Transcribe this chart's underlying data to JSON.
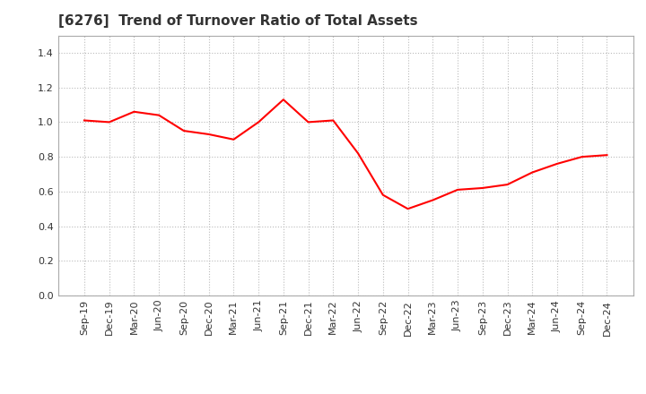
{
  "title": "[6276]  Trend of Turnover Ratio of Total Assets",
  "line_color": "#FF0000",
  "background_color": "#FFFFFF",
  "grid_color": "#BBBBBB",
  "labels": [
    "Sep-19",
    "Dec-19",
    "Mar-20",
    "Jun-20",
    "Sep-20",
    "Dec-20",
    "Mar-21",
    "Jun-21",
    "Sep-21",
    "Dec-21",
    "Mar-22",
    "Jun-22",
    "Sep-22",
    "Dec-22",
    "Mar-23",
    "Jun-23",
    "Sep-23",
    "Dec-23",
    "Mar-24",
    "Jun-24",
    "Sep-24",
    "Dec-24"
  ],
  "values": [
    1.01,
    1.0,
    1.06,
    1.04,
    0.95,
    0.93,
    0.9,
    1.0,
    1.13,
    1.0,
    1.01,
    0.82,
    0.58,
    0.5,
    0.55,
    0.61,
    0.62,
    0.64,
    0.71,
    0.76,
    0.8,
    0.81
  ],
  "ylim": [
    0.0,
    1.5
  ],
  "yticks": [
    0.0,
    0.2,
    0.4,
    0.6,
    0.8,
    1.0,
    1.2,
    1.4
  ],
  "title_fontsize": 11,
  "tick_fontsize": 8,
  "title_color": "#333333",
  "spine_color": "#AAAAAA",
  "line_width": 1.5
}
